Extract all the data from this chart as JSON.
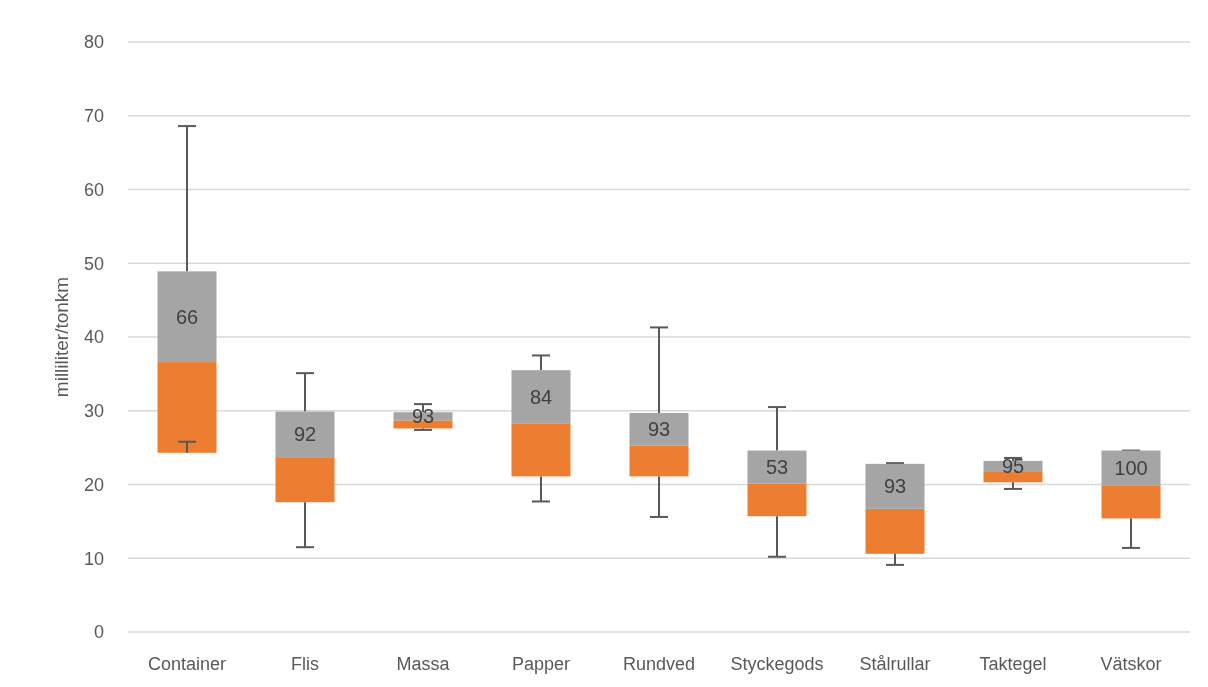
{
  "chart_data": {
    "type": "box",
    "ylabel": "milliliter/tonkm",
    "categories": [
      "Container",
      "Flis",
      "Massa",
      "Papper",
      "Rundved",
      "Styckegods",
      "Stålrullar",
      "Taktegel",
      "Vätskor"
    ],
    "boxes": [
      {
        "low": 25.8,
        "q1": 24.3,
        "median": 36.6,
        "q3": 48.9,
        "high": 68.6
      },
      {
        "low": 11.5,
        "q1": 17.6,
        "median": 23.7,
        "q3": 29.9,
        "high": 35.1
      },
      {
        "low": 27.4,
        "q1": 27.6,
        "median": 28.7,
        "q3": 29.8,
        "high": 30.9
      },
      {
        "low": 17.7,
        "q1": 21.1,
        "median": 28.3,
        "q3": 35.5,
        "high": 37.5
      },
      {
        "low": 15.6,
        "q1": 21.1,
        "median": 25.3,
        "q3": 29.7,
        "high": 41.3
      },
      {
        "low": 10.2,
        "q1": 15.7,
        "median": 20.1,
        "q3": 24.6,
        "high": 30.5
      },
      {
        "low": 9.1,
        "q1": 10.6,
        "median": 16.7,
        "q3": 22.8,
        "high": 22.9
      },
      {
        "low": 19.4,
        "q1": 20.3,
        "median": 21.7,
        "q3": 23.2,
        "high": 23.6
      },
      {
        "low": 11.4,
        "q1": 15.4,
        "median": 19.9,
        "q3": 24.6,
        "high": 24.6
      }
    ],
    "colors": [
      [
        "#ed7d31",
        "#a5a5a5"
      ],
      [
        "#ed7d31",
        "#a5a5a5"
      ],
      [
        "#ed7d31",
        "#a5a5a5"
      ],
      [
        "#ed7d31",
        "#a5a5a5"
      ],
      [
        "#ed7d31",
        "#a5a5a5"
      ],
      [
        "#ed7d31",
        "#a5a5a5"
      ],
      [
        "#ed7d31",
        "#a5a5a5"
      ],
      [
        "#ed7d31",
        "#a5a5a5"
      ],
      [
        "#ed7d31",
        "#a5a5a5"
      ]
    ],
    "ylim": [
      0,
      80
    ],
    "yticks": [
      0,
      10,
      20,
      30,
      40,
      50,
      60,
      70,
      80
    ],
    "grid": "y",
    "annotations": [
      {
        "text": "66",
        "x": "Container",
        "y": 36.6
      },
      {
        "text": "92",
        "x": "Flis",
        "y": 23.7
      },
      {
        "text": "93",
        "x": "Massa",
        "y": 28.7
      },
      {
        "text": "84",
        "x": "Papper",
        "y": 28.3
      },
      {
        "text": "93",
        "x": "Rundved",
        "y": 25.3
      },
      {
        "text": "53",
        "x": "Styckegods",
        "y": 20.1
      },
      {
        "text": "93",
        "x": "Stålrullar",
        "y": 16.7
      },
      {
        "text": "95",
        "x": "Taktegel",
        "y": 21.7
      },
      {
        "text": "100",
        "x": "Vätskor",
        "y": 19.9
      }
    ]
  }
}
